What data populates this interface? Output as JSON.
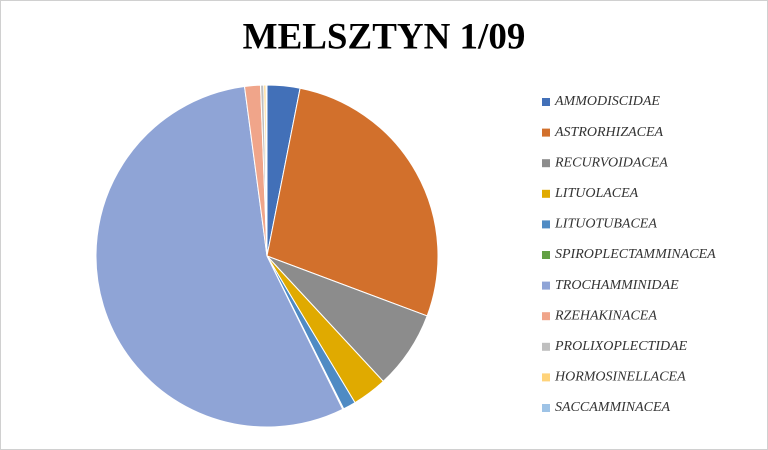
{
  "chart_data": {
    "type": "pie",
    "title": "MELSZTYN 1/09",
    "categories": [
      "AMMODISCIDAE",
      "ASTRORHIZACEA",
      "RECURVOIDACEA",
      "LITUOLACEA",
      "LITUOTUBACEA",
      "SPIROPLECTAMMINACEA",
      "TROCHAMMINIDAE",
      "RZEHAKINACEA",
      "PROLIXOPLECTIDAE",
      "HORMOSINELLACEA",
      "SACCAMMINACEA"
    ],
    "values": [
      3.1,
      27.6,
      7.4,
      3.3,
      1.2,
      0.1,
      55.2,
      1.5,
      0.3,
      0.2,
      0.1
    ],
    "colors": [
      "#4270b8",
      "#d2702c",
      "#8c8c8c",
      "#e0aa00",
      "#4f8bc4",
      "#63a044",
      "#8fa4d6",
      "#f0a58a",
      "#bfbfbf",
      "#ffd37a",
      "#9ec3e6"
    ],
    "legend": "right"
  }
}
